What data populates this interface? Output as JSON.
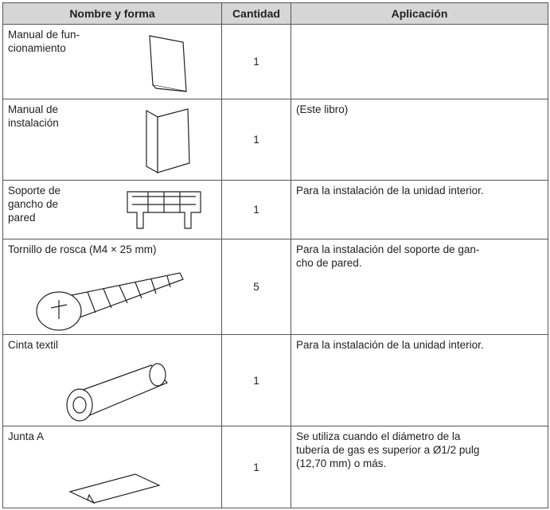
{
  "table": {
    "header": [
      "Nombre y forma",
      "Cantidad",
      "Aplicación"
    ],
    "rows": [
      {
        "name": "Manual de fun-\ncionamiento",
        "quantity": 1
      },
      {
        "name": "Manual de\ninstalación",
        "quantity": 1,
        "application": "(Este libro)"
      },
      {
        "name": "Soporte de\ngancho de\npared",
        "quantity": 1,
        "application": "Para la instalación de la unidad interior."
      },
      {
        "name": "Tornillo de rosca (M4 × 25 mm)",
        "quantity": 5,
        "application": "Para la instalación del soporte de gan-\ncho de pared."
      },
      {
        "name": "Cinta textil",
        "quantity": 1,
        "application": "Para la instalación de la unidad interior."
      },
      {
        "name": "Junta A",
        "quantity": 1,
        "application": "Se utiliza cuando el diámetro de la\ntubería de gas es superior a Ø1/2 pulg\n(12,70 mm) o más."
      }
    ]
  }
}
